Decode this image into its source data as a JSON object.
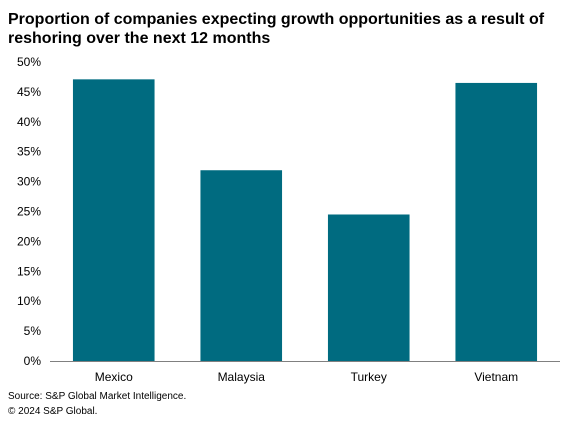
{
  "chart_data": {
    "type": "bar",
    "title": "Proportion of companies expecting growth opportunities as a result of reshoring over the next 12 months",
    "xlabel": "",
    "ylabel": "",
    "categories": [
      "Mexico",
      "Malaysia",
      "Turkey",
      "Vietnam"
    ],
    "values": [
      47.1,
      31.9,
      24.5,
      46.5
    ],
    "ylim": [
      0,
      50
    ],
    "yticks": [
      0,
      5,
      10,
      15,
      20,
      25,
      30,
      35,
      40,
      45,
      50
    ],
    "ytick_suffix": "%",
    "grid": false,
    "legend": "none",
    "bar_color": "#006B80"
  },
  "footer": {
    "source": "Source: S&P Global Market Intelligence.",
    "copyright": "© 2024 S&P Global."
  }
}
